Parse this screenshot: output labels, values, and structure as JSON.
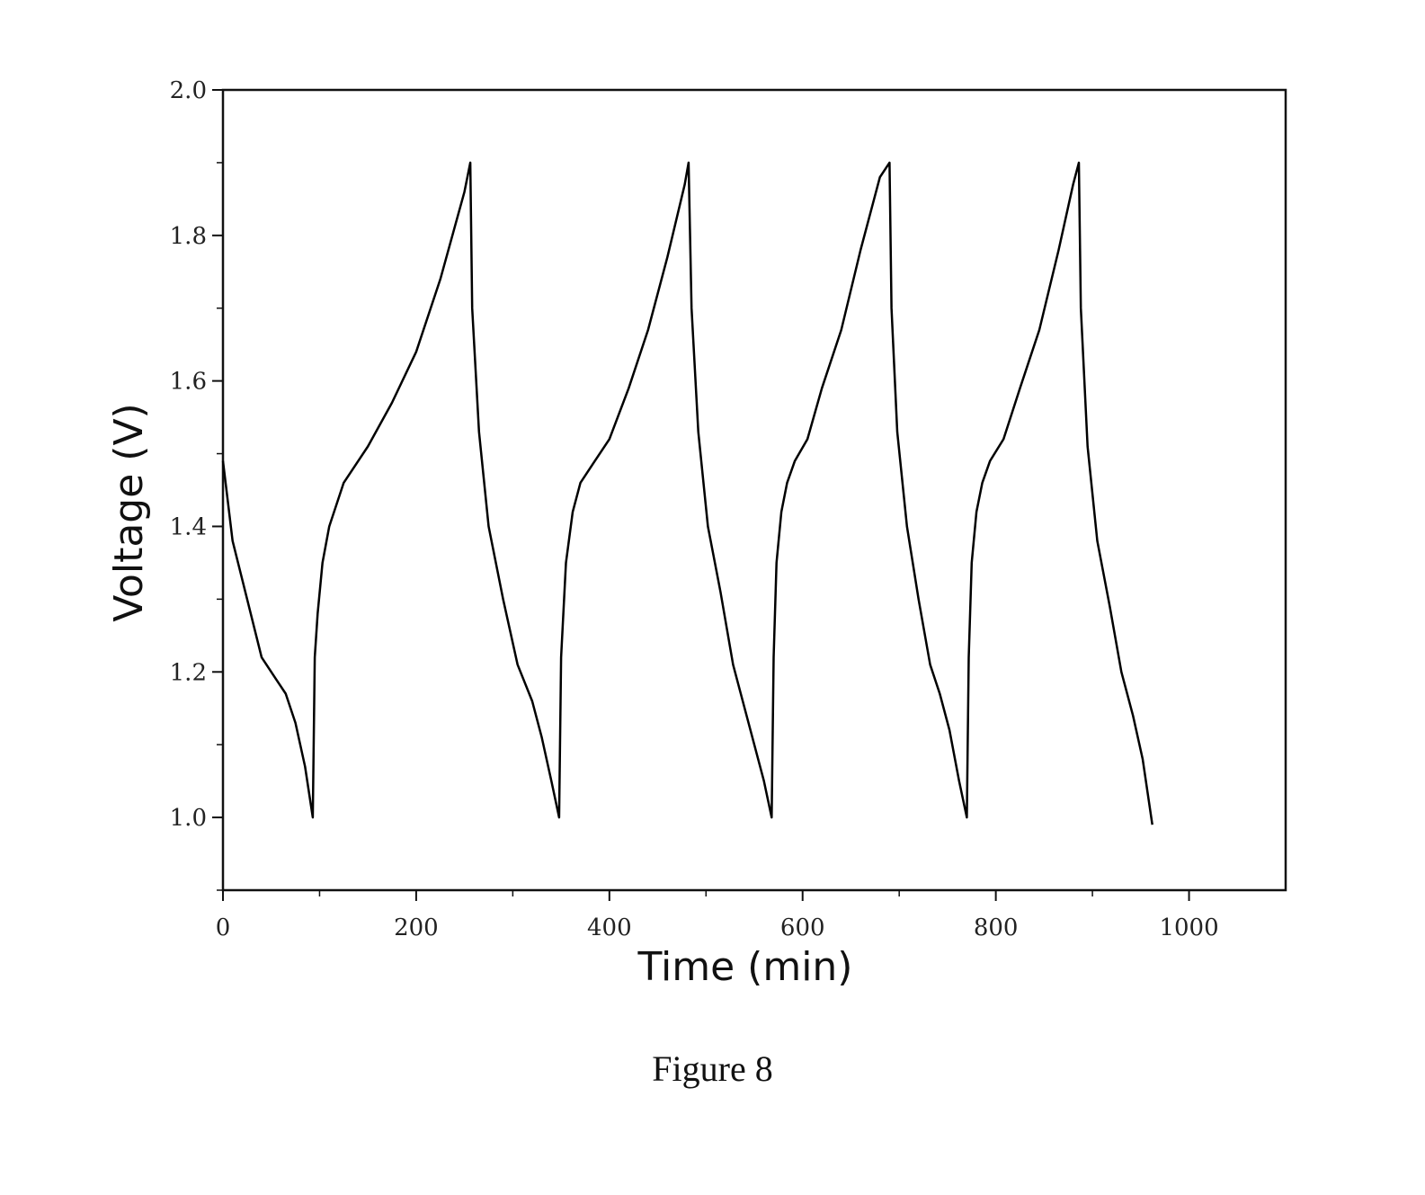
{
  "figure_caption": "Figure 8",
  "chart_data": {
    "type": "line",
    "title": "",
    "xlabel": "Time (min)",
    "ylabel": "Voltage (V)",
    "xlim": [
      0,
      1100
    ],
    "ylim": [
      0.9,
      2.0
    ],
    "x_ticks": [
      0,
      200,
      400,
      600,
      800,
      1000
    ],
    "x_tick_labels": [
      "0",
      "200",
      "400",
      "600",
      "800",
      "1000"
    ],
    "y_ticks": [
      1.0,
      1.2,
      1.4,
      1.6,
      1.8,
      2.0
    ],
    "y_tick_labels": [
      "1.0",
      "1.2",
      "1.4",
      "1.6",
      "1.8",
      "2.0"
    ],
    "grid": false,
    "legend": "none",
    "line_color": "#000000",
    "series": [
      {
        "x": [
          0,
          10,
          25,
          40,
          55,
          65,
          75,
          85,
          93,
          95,
          98,
          103,
          110,
          125,
          150,
          175,
          200,
          225,
          250,
          256,
          258,
          265,
          275,
          290,
          305,
          320,
          330,
          340,
          348,
          350,
          355,
          362,
          370,
          385,
          400,
          420,
          440,
          460,
          478,
          482,
          485,
          492,
          502,
          515,
          528,
          538,
          550,
          560,
          568,
          570,
          573,
          578,
          584,
          592,
          605,
          620,
          640,
          660,
          680,
          690,
          692,
          698,
          708,
          720,
          732,
          742,
          752,
          762,
          770,
          772,
          775,
          780,
          786,
          794,
          808,
          825,
          845,
          865,
          880,
          886,
          888,
          895,
          905,
          918,
          930,
          942,
          952,
          962
        ],
        "y": [
          1.49,
          1.38,
          1.3,
          1.22,
          1.19,
          1.17,
          1.13,
          1.07,
          1.0,
          1.22,
          1.28,
          1.35,
          1.4,
          1.46,
          1.51,
          1.57,
          1.64,
          1.74,
          1.86,
          1.9,
          1.7,
          1.53,
          1.4,
          1.3,
          1.21,
          1.16,
          1.11,
          1.05,
          1.0,
          1.22,
          1.35,
          1.42,
          1.46,
          1.49,
          1.52,
          1.59,
          1.67,
          1.77,
          1.87,
          1.9,
          1.7,
          1.53,
          1.4,
          1.31,
          1.21,
          1.16,
          1.1,
          1.05,
          1.0,
          1.22,
          1.35,
          1.42,
          1.46,
          1.49,
          1.52,
          1.59,
          1.67,
          1.78,
          1.88,
          1.9,
          1.7,
          1.53,
          1.4,
          1.3,
          1.21,
          1.17,
          1.12,
          1.05,
          1.0,
          1.22,
          1.35,
          1.42,
          1.46,
          1.49,
          1.52,
          1.59,
          1.67,
          1.78,
          1.87,
          1.9,
          1.7,
          1.51,
          1.38,
          1.29,
          1.2,
          1.14,
          1.08,
          0.99
        ]
      }
    ]
  }
}
